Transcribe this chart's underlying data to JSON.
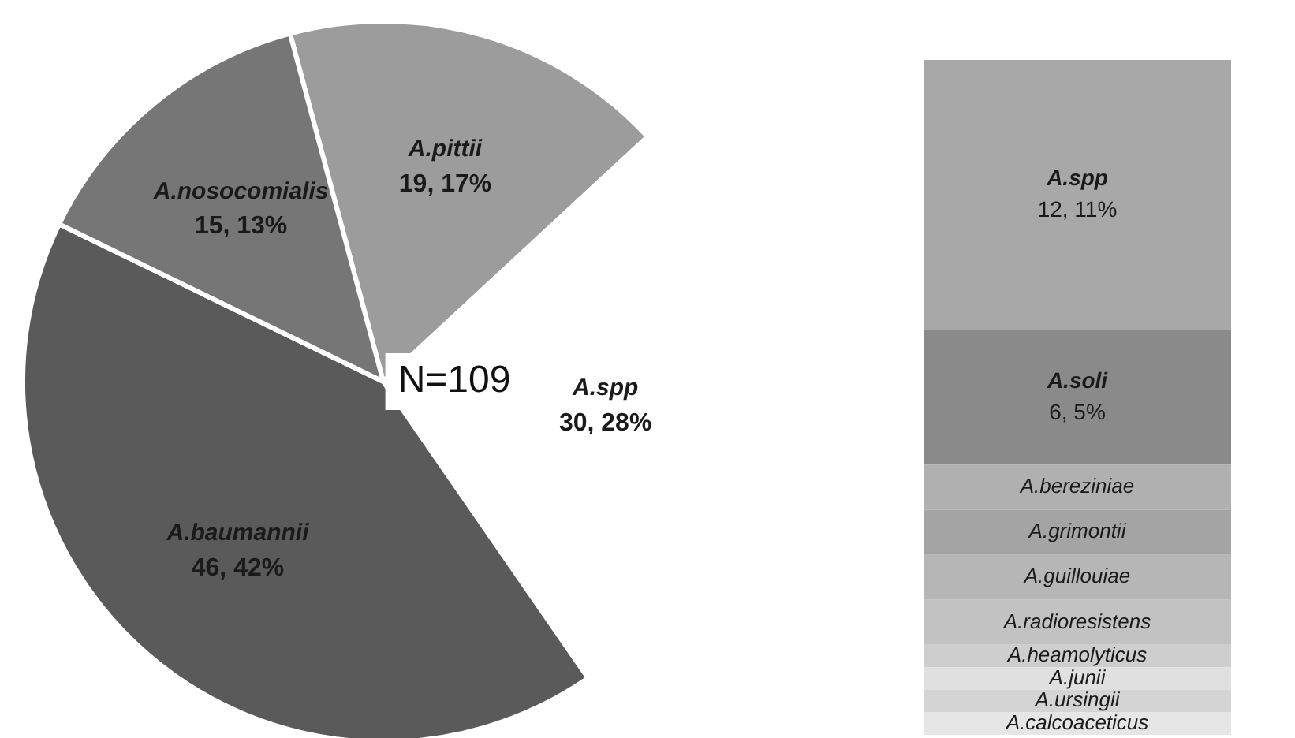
{
  "chart_data": [
    {
      "type": "pie",
      "categories": [
        "A.pittii",
        "A.spp",
        "A.baumannii",
        "A.nosocomialis"
      ],
      "values": [
        19,
        30,
        46,
        15
      ],
      "colors": [
        "#9c9c9c",
        "#ffffff",
        "#5a5a5a",
        "#767676"
      ],
      "value_labels": [
        "19, 17%",
        "30, 28%",
        "46, 42%",
        "15, 13%"
      ],
      "annotations": [
        "N=109"
      ]
    },
    {
      "type": "bar",
      "stacked": true,
      "categories": [
        null
      ],
      "series": [
        {
          "name": "A.calcoaceticus",
          "color": "#e6e6e6",
          "values": [
            1
          ]
        },
        {
          "name": "A.ursingii",
          "color": "#d4d4d4",
          "values": [
            1
          ]
        },
        {
          "name": "A.junii",
          "color": "#e0e0e0",
          "values": [
            1
          ]
        },
        {
          "name": "A.heamolyticus",
          "color": "#cecece",
          "values": [
            1
          ]
        },
        {
          "name": "A.radioresistens",
          "color": "#c2c2c2",
          "values": [
            2
          ]
        },
        {
          "name": "A.guillouiae",
          "color": "#b6b6b6",
          "values": [
            2
          ]
        },
        {
          "name": "A.grimontii",
          "color": "#a4a4a4",
          "values": [
            2
          ]
        },
        {
          "name": "A.bereziniae",
          "color": "#b0b0b0",
          "values": [
            2
          ]
        },
        {
          "name": "A.soli",
          "color": "#8a8a8a",
          "values": [
            6
          ],
          "value_labels": [
            "6, 5%"
          ]
        },
        {
          "name": "A.spp",
          "color": "#a8a8a8",
          "values": [
            12
          ],
          "value_labels": [
            "12, 11%"
          ]
        }
      ]
    }
  ]
}
